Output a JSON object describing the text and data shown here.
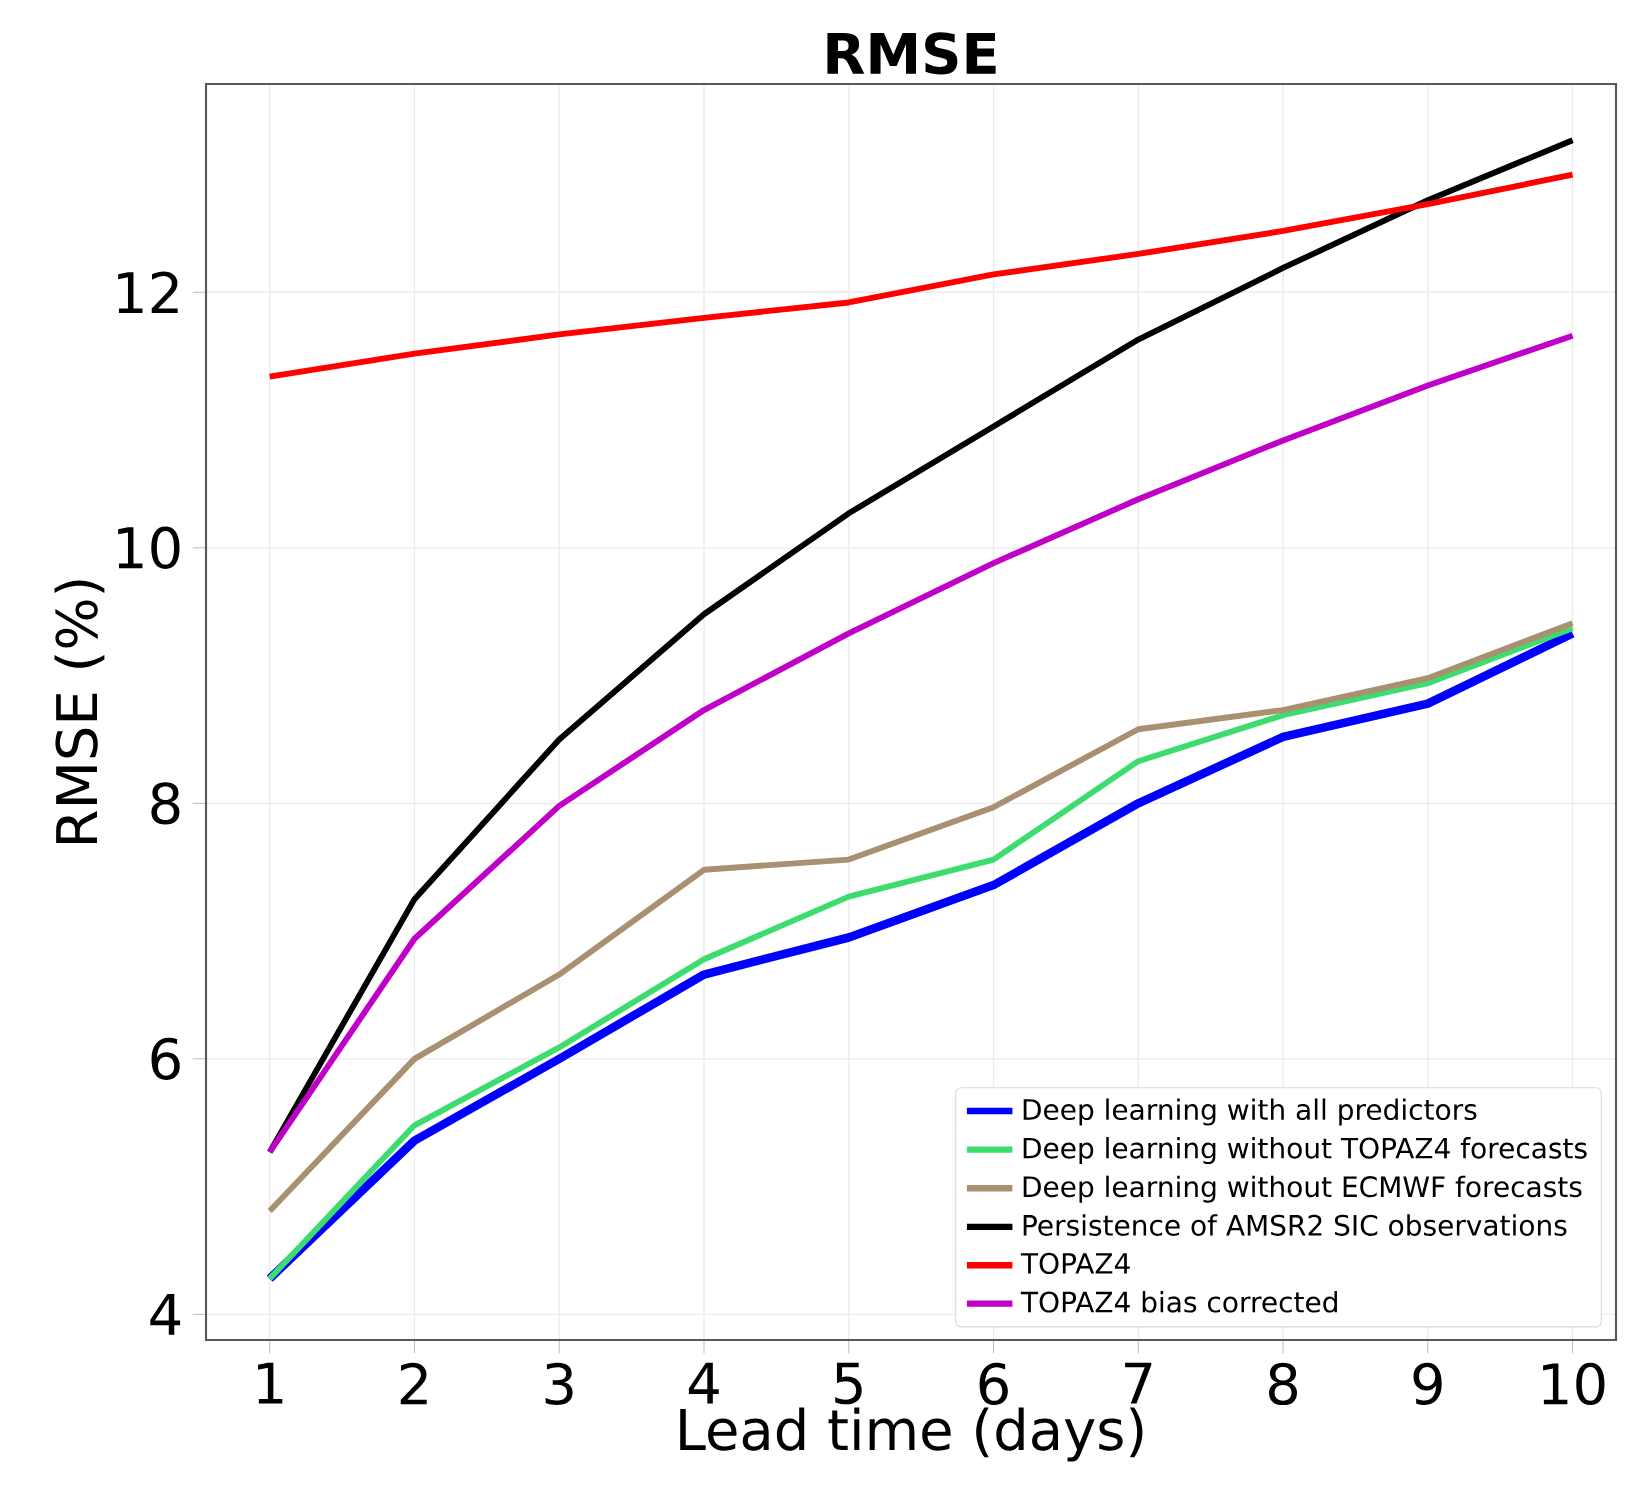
{
  "chart_data": {
    "type": "line",
    "title": "RMSE",
    "xlabel": "Lead time (days)",
    "ylabel": "RMSE (%)",
    "x": [
      1,
      2,
      3,
      4,
      5,
      6,
      7,
      8,
      9,
      10
    ],
    "series": [
      {
        "name": "Deep learning with all predictors",
        "color": "#0000ff",
        "values": [
          4.28,
          5.36,
          6.0,
          6.66,
          6.95,
          7.36,
          8.0,
          8.52,
          8.78,
          9.33
        ]
      },
      {
        "name": "Deep learning without TOPAZ4 forecasts",
        "color": "#3cdc6e",
        "values": [
          4.28,
          5.48,
          6.09,
          6.78,
          7.27,
          7.56,
          8.33,
          8.69,
          8.94,
          9.37
        ]
      },
      {
        "name": "Deep learning without ECMWF forecasts",
        "color": "#a89070",
        "values": [
          4.81,
          6.0,
          6.66,
          7.48,
          7.56,
          7.97,
          8.58,
          8.73,
          8.98,
          9.41
        ]
      },
      {
        "name": "Persistence of AMSR2 SIC observations",
        "color": "#000000",
        "values": [
          5.27,
          7.25,
          8.5,
          9.48,
          10.27,
          10.95,
          11.63,
          12.19,
          12.72,
          13.19
        ]
      },
      {
        "name": "TOPAZ4",
        "color": "#ff0000",
        "values": [
          11.34,
          11.52,
          11.67,
          11.8,
          11.92,
          12.14,
          12.3,
          12.48,
          12.69,
          12.92
        ]
      },
      {
        "name": "TOPAZ4 bias corrected",
        "color": "#c000c8",
        "values": [
          5.27,
          6.94,
          7.98,
          8.73,
          9.33,
          9.88,
          10.38,
          10.84,
          11.27,
          11.66
        ]
      }
    ],
    "xlim": [
      0.56,
      10.3
    ],
    "ylim": [
      3.8,
      13.63
    ],
    "xticks": [
      1,
      2,
      3,
      4,
      5,
      6,
      7,
      8,
      9,
      10
    ],
    "yticks": [
      4,
      6,
      8,
      10,
      12
    ],
    "grid": true,
    "legend": "bottom right",
    "marker": "none",
    "line_style": "solid"
  }
}
